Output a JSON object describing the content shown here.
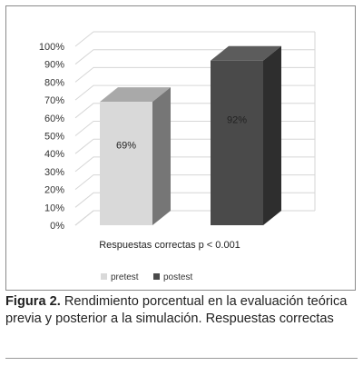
{
  "chart_data": {
    "type": "bar",
    "style": "3d-column",
    "categories": [
      "pretest",
      "postest"
    ],
    "values": [
      69,
      92
    ],
    "data_labels": [
      "69%",
      "92%"
    ],
    "xlabel": "Respuestas correctas p < 0.001",
    "ylabel": "",
    "yticks": [
      "0%",
      "10%",
      "20%",
      "30%",
      "40%",
      "50%",
      "60%",
      "70%",
      "80%",
      "90%",
      "100%"
    ],
    "ylim": [
      0,
      100
    ],
    "grid": true,
    "legend": {
      "placement": "bottom",
      "items": [
        {
          "name": "pretest",
          "color": "#d9d9d9"
        },
        {
          "name": "postest",
          "color": "#4a4a4a"
        }
      ]
    },
    "colors": {
      "pretest_front": "#d9d9d9",
      "pretest_top": "#a9a9a9",
      "pretest_side": "#767676",
      "postest_front": "#4a4a4a",
      "postest_top": "#5c5c5c",
      "postest_side": "#2e2e2e",
      "grid": "#d6d6d6"
    }
  },
  "caption": {
    "label": "Figura 2.",
    "text": " Rendimiento porcentual en la evaluación teórica previa y posterior a la simulación. Respuestas correctas"
  }
}
